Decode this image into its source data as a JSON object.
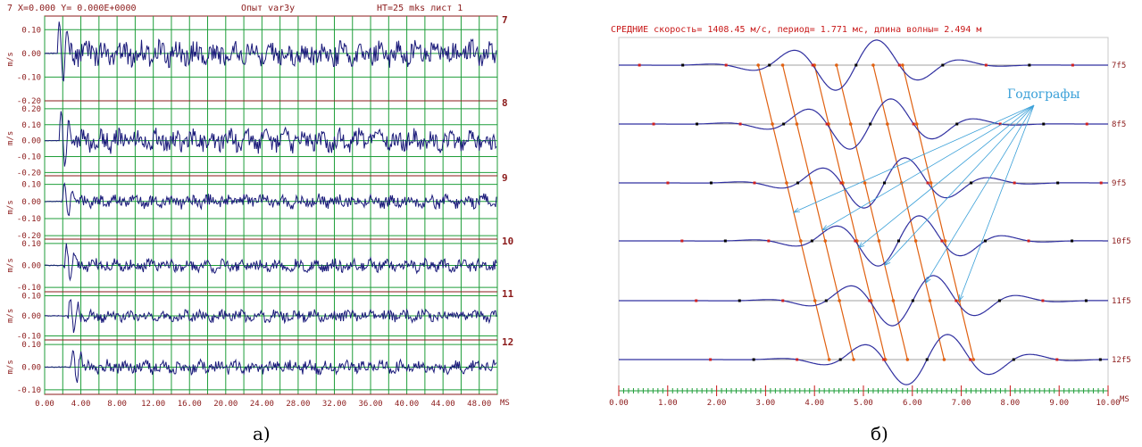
{
  "panel_a": {
    "header_left": "7 X=0.000 Y= 0.000E+0000",
    "header_center": "Опыт var3y",
    "header_right": "НТ=25 mks лист  1",
    "caption": "а)"
  },
  "panel_b": {
    "header": "СРЕДНИЕ  скорость= 1408.45 м/с,  период= 1.771 мс, длина волны= 2.494 м",
    "annotation": "Годографы",
    "caption": "б)"
  },
  "colors": {
    "grid_a": "#1f9e3a",
    "trace": "#1a1a7a",
    "frame": "#8b1a1a",
    "hodograph": "#e06010",
    "arrows": "#3aa0d8",
    "baseline_b": "#a0a0a0"
  },
  "chart_data": [
    {
      "type": "line",
      "title": "Опыт var3y",
      "xlabel": "MS",
      "ylabel": "m/s",
      "x_ticks": [
        "0.00",
        "4.00",
        "8.00",
        "12.00",
        "16.00",
        "20.00",
        "24.00",
        "28.00",
        "32.00",
        "36.00",
        "40.00",
        "44.00",
        "48.00"
      ],
      "xlim": [
        0,
        50
      ],
      "grid": true,
      "series": [
        {
          "name": "7",
          "ylim": [
            -0.2,
            0.15
          ],
          "y_ticks": [
            "0.10",
            "0.00",
            "-0.10",
            "-0.20"
          ],
          "first_arrival_ms": 1.4,
          "max_amplitude": 0.16
        },
        {
          "name": "8",
          "ylim": [
            -0.22,
            0.25
          ],
          "y_ticks": [
            "0.20",
            "0.10",
            "0.00",
            "-0.10",
            "-0.20"
          ],
          "first_arrival_ms": 1.6,
          "max_amplitude": 0.21
        },
        {
          "name": "9",
          "ylim": [
            -0.22,
            0.15
          ],
          "y_ticks": [
            "0.10",
            "0.00",
            "-0.10",
            "-0.20"
          ],
          "first_arrival_ms": 2.0,
          "max_amplitude": 0.12
        },
        {
          "name": "10",
          "ylim": [
            -0.12,
            0.12
          ],
          "y_ticks": [
            "0.10",
            "0.00",
            "-0.10"
          ],
          "first_arrival_ms": 2.2,
          "max_amplitude": 0.09
        },
        {
          "name": "11",
          "ylim": [
            -0.12,
            0.12
          ],
          "y_ticks": [
            "0.10",
            "0.00",
            "-0.10"
          ],
          "first_arrival_ms": 2.6,
          "max_amplitude": 0.09
        },
        {
          "name": "12",
          "ylim": [
            -0.12,
            0.12
          ],
          "y_ticks": [
            "0.10",
            "0.00",
            "-0.10"
          ],
          "first_arrival_ms": 2.9,
          "max_amplitude": 0.09
        }
      ]
    },
    {
      "type": "line",
      "title": "СРЕДНИЕ",
      "xlabel": "MS",
      "x_ticks": [
        "0.00",
        "1.00",
        "2.00",
        "3.00",
        "4.00",
        "5.00",
        "6.00",
        "7.00",
        "8.00",
        "9.00",
        "10.00"
      ],
      "xlim": [
        0,
        10
      ],
      "velocity_m_s": 1408.45,
      "period_ms": 1.771,
      "wavelength_m": 2.494,
      "traces": [
        {
          "name": "7f5",
          "center_ms": 4.85
        },
        {
          "name": "8f5",
          "center_ms": 5.14
        },
        {
          "name": "9f5",
          "center_ms": 5.43
        },
        {
          "name": "10f5",
          "center_ms": 5.72
        },
        {
          "name": "11f5",
          "center_ms": 6.01
        },
        {
          "name": "12f5",
          "center_ms": 6.3
        }
      ],
      "hodographs_start_ms": [
        2.85,
        3.35,
        4.0,
        4.45,
        5.2,
        5.8
      ]
    }
  ]
}
